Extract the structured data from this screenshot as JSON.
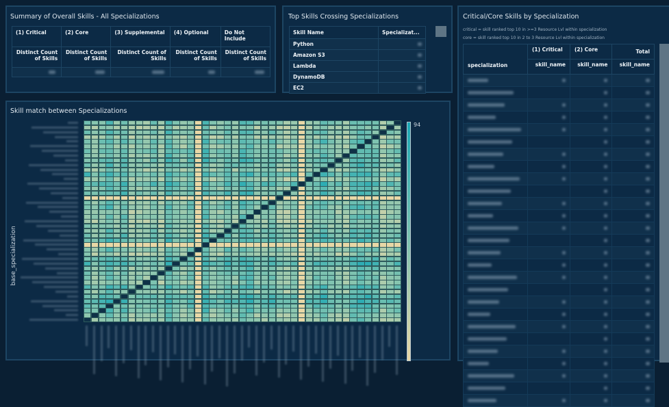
{
  "summary": {
    "title": "Summary of Overall Skills - All Specializations",
    "columns": [
      "(1) Critical",
      "(2) Core",
      "(3) Supplemental",
      "(4) Optional",
      "Do Not Include"
    ],
    "measures": [
      "Distinct Count of Skills",
      "Distinct Count of Skills",
      "Distinct Count of Skills",
      "Distinct Count of Skills",
      "Distinct Count of Skills"
    ]
  },
  "top_skills": {
    "title": "Top Skills Crossing Specializations",
    "headers": [
      "Skill Name",
      "Specializat..."
    ],
    "rows": [
      "Python",
      "Amazon S3",
      "Lambda",
      "DynamoDB",
      "EC2"
    ]
  },
  "heatmap": {
    "title": "Skill match between Specializations",
    "ylabel": "base_specialization",
    "scale_max": "94",
    "colors": {
      "low": "#e8d7a6",
      "mid": "#7ec3b0",
      "high": "#1aa8b5",
      "diag": "#0f3147"
    }
  },
  "critical_core": {
    "title": "Critical/Core Skills by Specialization",
    "note1": "critical = skill ranked top 10 in >=3 Resource Lvl within specialization",
    "note2": "core = skill ranked top 10 in 2 to 3 Resource Lvl within specialization",
    "group_headers": [
      "(1) Critical",
      "(2) Core",
      "Total"
    ],
    "row_header": "specialization",
    "measure": "skill_name"
  }
}
